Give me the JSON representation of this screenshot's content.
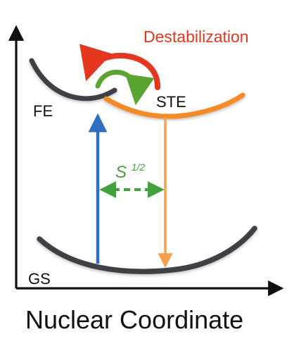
{
  "labels": {
    "destabilization": "Destabilization",
    "fe": "FE",
    "ste": "STE",
    "gs": "GS",
    "s_symbol": "S",
    "s_superscript": "1/2",
    "xlabel": "Nuclear Coordinate"
  },
  "colors": {
    "curve": "#3c3f44",
    "ste_curve": "#f58a26",
    "absorption_arrow": "#2f6fc0",
    "emission_arrow": "#f7a04b",
    "destabilization_arrow": "#e5361f",
    "trapping_arrow": "#5aa532",
    "s_label": "#42a33d",
    "destabilization_text": "#e5361f",
    "axis": "#111111"
  }
}
